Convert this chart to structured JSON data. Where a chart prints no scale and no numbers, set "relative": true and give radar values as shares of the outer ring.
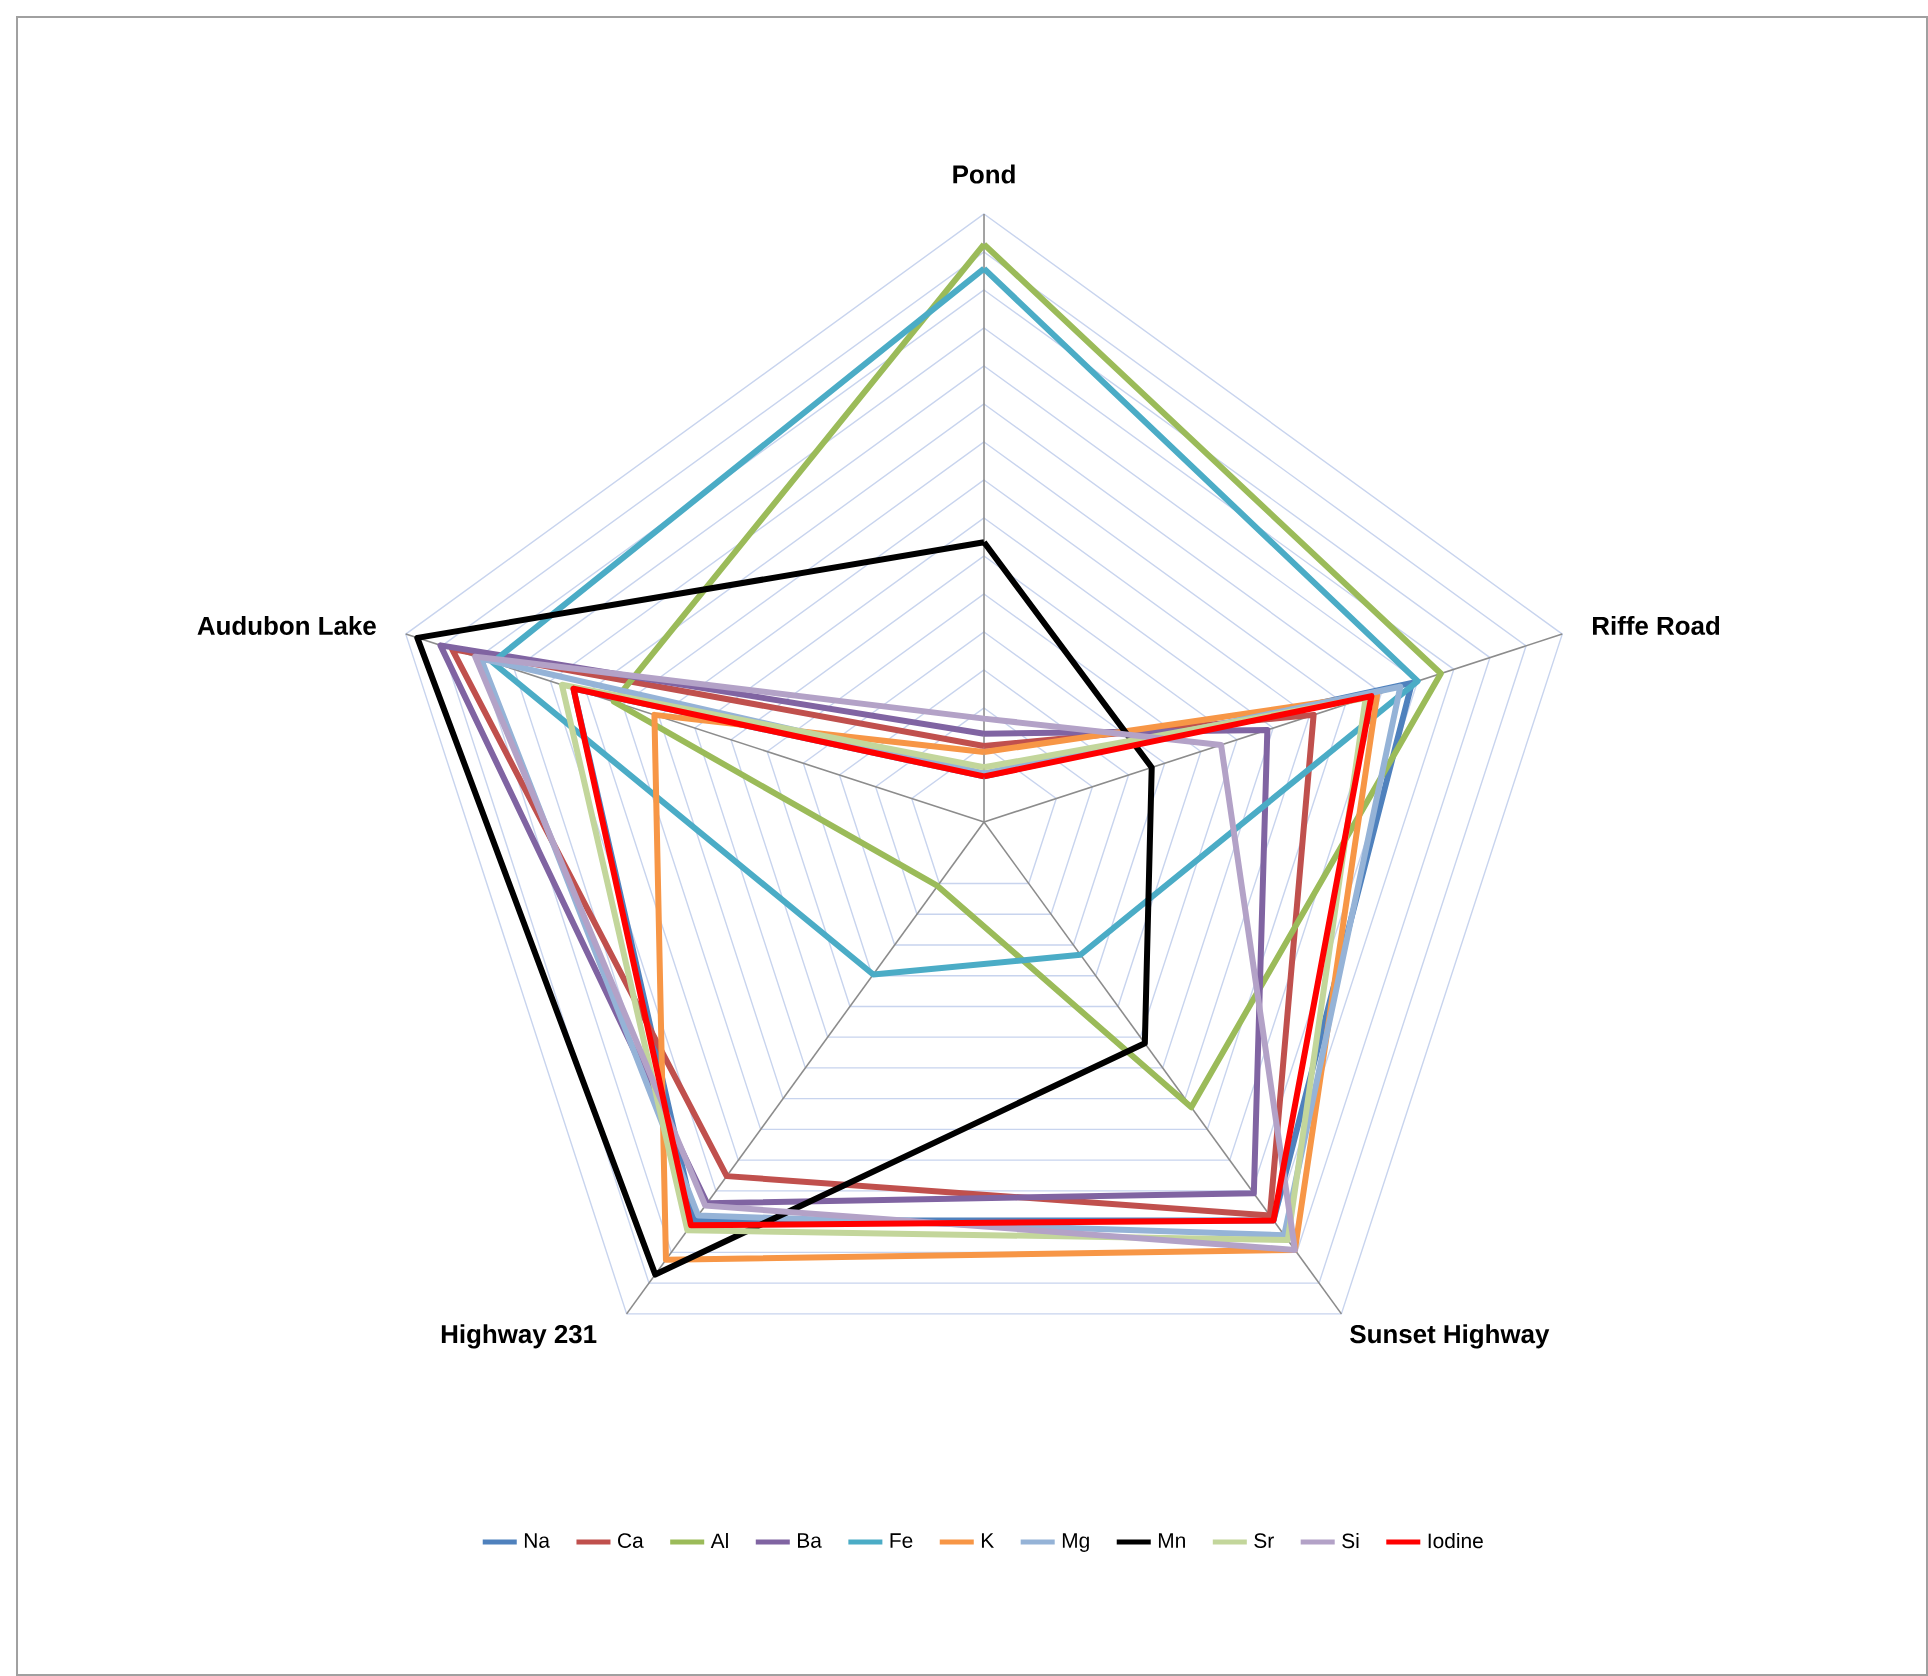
{
  "chart_data": {
    "type": "radar",
    "relative": true,
    "categories": [
      "Pond",
      "Riffe Road",
      "Sunset Highway",
      "Highway 231",
      "Audubon Lake"
    ],
    "grid": true,
    "legend": "bottom",
    "marker": "none",
    "series": [
      {
        "name": "Na",
        "color": "#4f81bd",
        "values": [
          0.075,
          0.74,
          0.81,
          0.81,
          0.71
        ]
      },
      {
        "name": "Ca",
        "color": "#c0504d",
        "values": [
          0.125,
          0.57,
          0.8,
          0.72,
          0.92
        ]
      },
      {
        "name": "Al",
        "color": "#9bbb59",
        "values": [
          0.95,
          0.79,
          0.58,
          0.13,
          0.64
        ]
      },
      {
        "name": "Ba",
        "color": "#8064a2",
        "values": [
          0.145,
          0.49,
          0.755,
          0.775,
          0.94
        ]
      },
      {
        "name": "Fe",
        "color": "#4bacc6",
        "values": [
          0.91,
          0.75,
          0.27,
          0.31,
          0.85
        ]
      },
      {
        "name": "K",
        "color": "#f79646",
        "values": [
          0.115,
          0.68,
          0.87,
          0.89,
          0.57
        ]
      },
      {
        "name": "Mg",
        "color": "#95b3d7",
        "values": [
          0.08,
          0.72,
          0.84,
          0.8,
          0.87
        ]
      },
      {
        "name": "Mn",
        "color": "#000000",
        "values": [
          0.46,
          0.29,
          0.45,
          0.92,
          0.98
        ]
      },
      {
        "name": "Sr",
        "color": "#c3d69b",
        "values": [
          0.09,
          0.66,
          0.85,
          0.83,
          0.73
        ]
      },
      {
        "name": "Si",
        "color": "#b3a2c7",
        "values": [
          0.17,
          0.41,
          0.87,
          0.78,
          0.88
        ]
      },
      {
        "name": "Iodine",
        "color": "#ff0000",
        "values": [
          0.075,
          0.67,
          0.81,
          0.82,
          0.71
        ]
      }
    ]
  }
}
